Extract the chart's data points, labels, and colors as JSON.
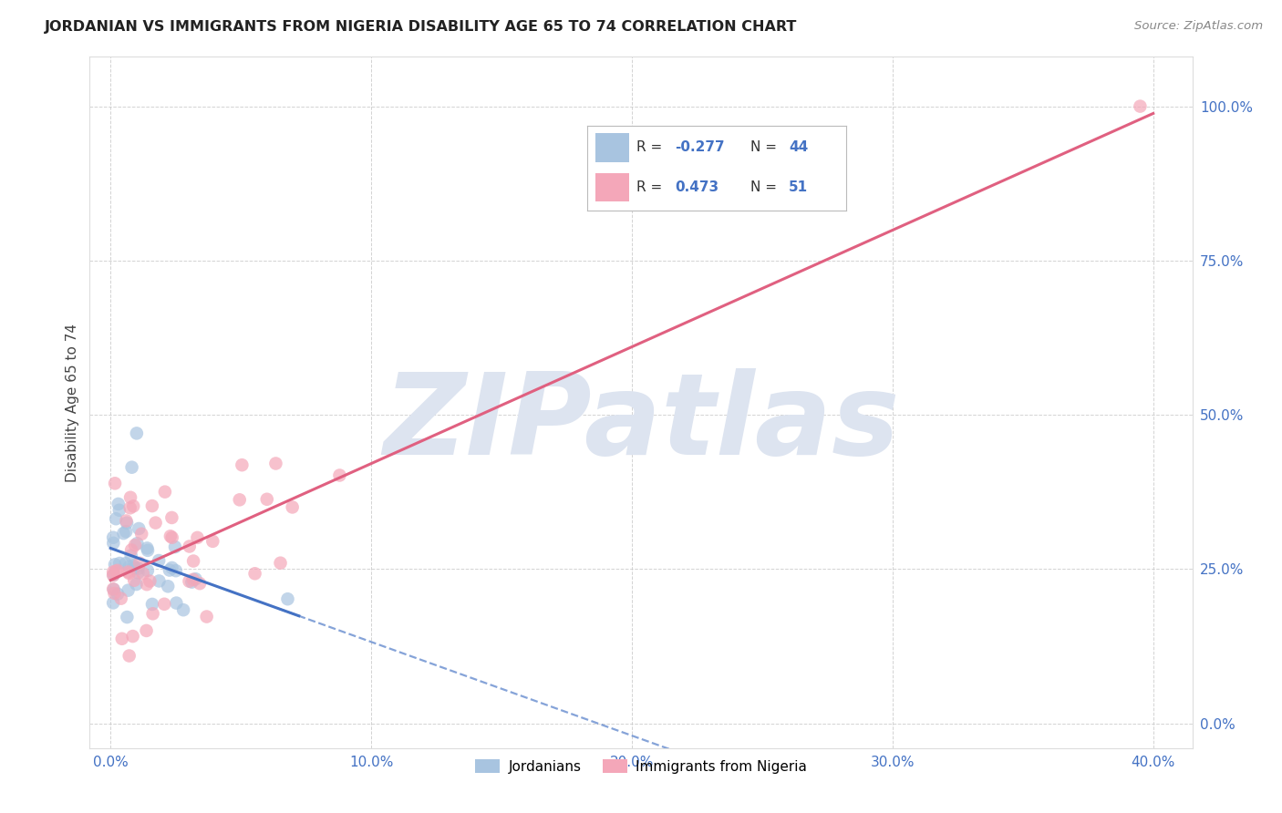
{
  "title": "JORDANIAN VS IMMIGRANTS FROM NIGERIA DISABILITY AGE 65 TO 74 CORRELATION CHART",
  "source": "Source: ZipAtlas.com",
  "ylabel": "Disability Age 65 to 74",
  "xlim": [
    0.0,
    0.4
  ],
  "ylim": [
    0.0,
    1.0
  ],
  "xtick_vals": [
    0.0,
    0.1,
    0.2,
    0.3,
    0.4
  ],
  "ytick_vals": [
    0.0,
    0.25,
    0.5,
    0.75,
    1.0
  ],
  "jordanian_color": "#a8c4e0",
  "nigeria_color": "#f4a7b9",
  "trendline_blue": "#4472c4",
  "trendline_pink": "#e06080",
  "jordanian_R": -0.277,
  "jordanian_N": 44,
  "nigeria_R": 0.473,
  "nigeria_N": 51,
  "background_color": "#ffffff",
  "grid_color": "#c8c8c8",
  "watermark_color": "#dde4f0",
  "legend_blue_label": "Jordanians",
  "legend_pink_label": "Immigrants from Nigeria",
  "tick_color": "#4472c4"
}
